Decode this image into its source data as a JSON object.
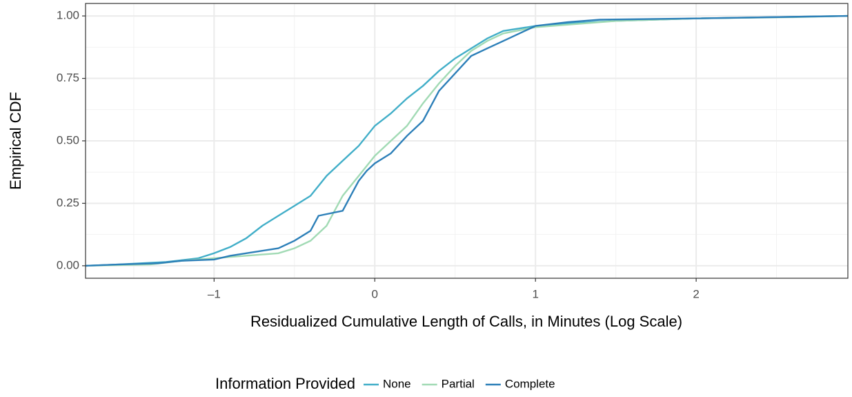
{
  "chart_data": {
    "type": "line",
    "x_label": "Residualized Cumulative Length of Calls, in Minutes (Log Scale)",
    "y_label": "Empirical CDF",
    "legend_title": "Information Provided",
    "legend_position": "bottom",
    "grid": true,
    "minor_grid": true,
    "xlim": [
      -1.8,
      2.944
    ],
    "ylim": [
      -0.05,
      1.05
    ],
    "xticks": [
      {
        "value": -1,
        "label": "–1"
      },
      0,
      1,
      2
    ],
    "yticks": [
      {
        "value": 0,
        "label": "0.00"
      },
      {
        "value": 0.25,
        "label": "0.25"
      },
      {
        "value": 0.5,
        "label": "0.50"
      },
      {
        "value": 0.75,
        "label": "0.75"
      },
      {
        "value": 1,
        "label": "1.00"
      }
    ],
    "series": [
      {
        "name": "None",
        "color": "#41aec8",
        "x": [
          -1.8,
          -1.6,
          -1.3,
          -1.1,
          -1.0,
          -0.9,
          -0.8,
          -0.7,
          -0.6,
          -0.5,
          -0.4,
          -0.3,
          -0.2,
          -0.1,
          0,
          0.1,
          0.2,
          0.3,
          0.4,
          0.5,
          0.6,
          0.7,
          0.8,
          1.0,
          1.2,
          1.5,
          2.0,
          2.944
        ],
        "values": [
          0,
          0.005,
          0.015,
          0.03,
          0.05,
          0.075,
          0.11,
          0.16,
          0.2,
          0.24,
          0.28,
          0.36,
          0.42,
          0.48,
          0.56,
          0.61,
          0.67,
          0.72,
          0.78,
          0.83,
          0.87,
          0.91,
          0.94,
          0.96,
          0.97,
          0.98,
          0.99,
          1
        ]
      },
      {
        "name": "Partial",
        "color": "#a1dab4",
        "x": [
          -1.8,
          -1.4,
          -1.2,
          -0.9,
          -0.6,
          -0.5,
          -0.4,
          -0.3,
          -0.25,
          -0.2,
          -0.1,
          0,
          0.1,
          0.2,
          0.3,
          0.4,
          0.5,
          0.6,
          0.7,
          0.8,
          1.0,
          1.2,
          1.5,
          2.0,
          2.6,
          2.944
        ],
        "values": [
          0,
          0.005,
          0.02,
          0.035,
          0.05,
          0.07,
          0.1,
          0.16,
          0.22,
          0.28,
          0.36,
          0.44,
          0.5,
          0.56,
          0.65,
          0.73,
          0.8,
          0.86,
          0.9,
          0.93,
          0.955,
          0.965,
          0.98,
          0.99,
          0.995,
          1
        ]
      },
      {
        "name": "Complete",
        "color": "#2c7fb8",
        "x": [
          -1.8,
          -1.6,
          -1.35,
          -1.2,
          -1.0,
          -0.9,
          -0.7,
          -0.6,
          -0.5,
          -0.4,
          -0.35,
          -0.2,
          -0.15,
          -0.1,
          -0.05,
          0,
          0.1,
          0.2,
          0.3,
          0.35,
          0.4,
          0.5,
          0.6,
          0.7,
          0.8,
          0.9,
          1.0,
          1.2,
          1.4,
          2.0,
          2.944
        ],
        "values": [
          0,
          0.005,
          0.01,
          0.02,
          0.025,
          0.04,
          0.06,
          0.07,
          0.1,
          0.14,
          0.2,
          0.22,
          0.28,
          0.34,
          0.38,
          0.41,
          0.45,
          0.52,
          0.58,
          0.64,
          0.7,
          0.77,
          0.84,
          0.87,
          0.9,
          0.93,
          0.96,
          0.975,
          0.985,
          0.99,
          1
        ]
      }
    ]
  }
}
